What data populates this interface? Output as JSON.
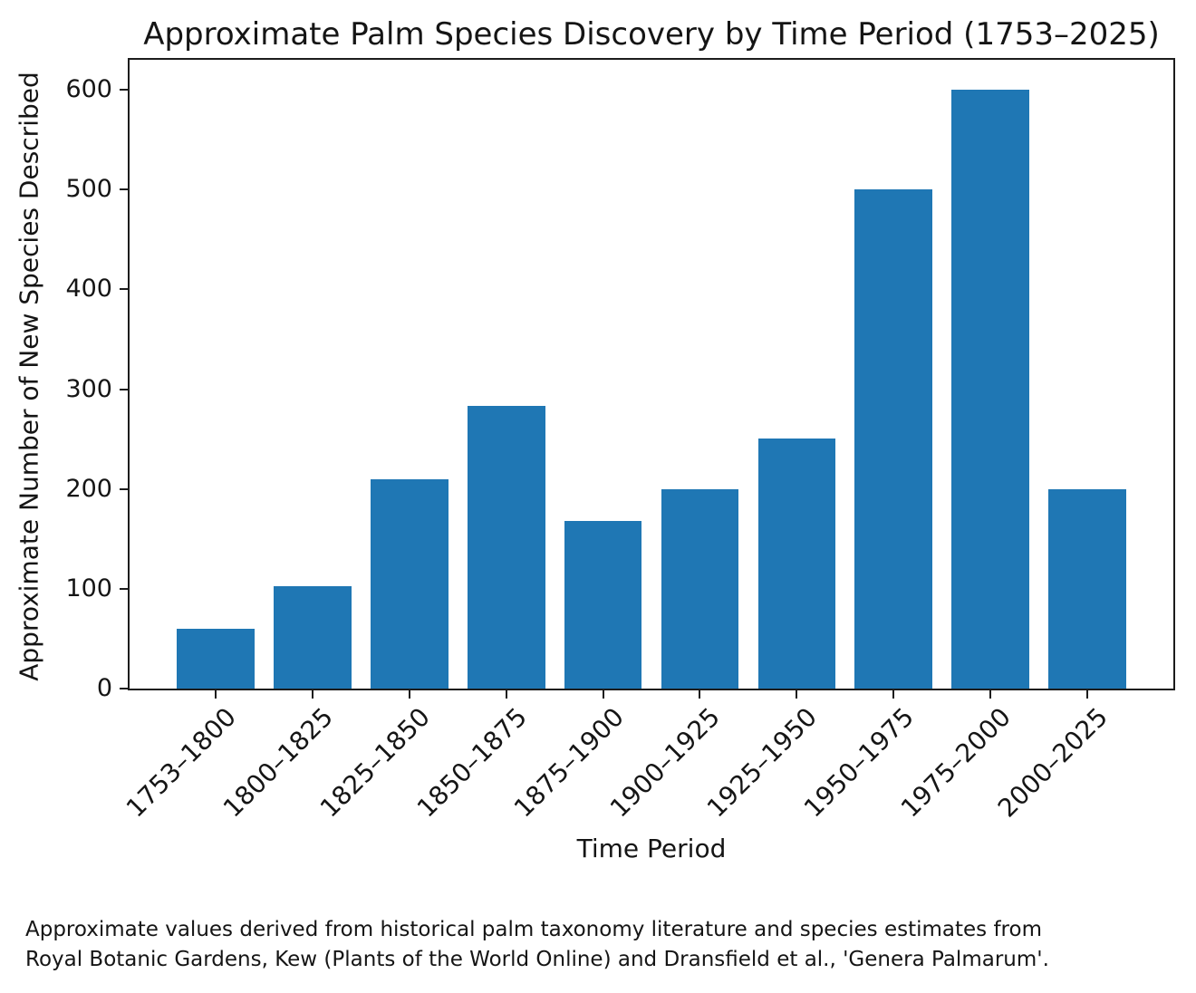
{
  "chart_data": {
    "type": "bar",
    "title": "Approximate Palm Species Discovery by Time Period (1753–2025)",
    "xlabel": "Time Period",
    "ylabel": "Approximate Number of New Species Described",
    "categories": [
      "1753–1800",
      "1800–1825",
      "1825–1850",
      "1850–1875",
      "1875–1900",
      "1900–1925",
      "1925–1950",
      "1950–1975",
      "1975–2000",
      "2000–2025"
    ],
    "values": [
      60,
      103,
      210,
      283,
      168,
      200,
      251,
      500,
      600,
      200
    ],
    "yticks": [
      0,
      100,
      200,
      300,
      400,
      500,
      600
    ],
    "ylim": [
      0,
      630
    ],
    "bar_color": "#1f77b4",
    "grid": false,
    "legend_position": "none"
  },
  "footnote": {
    "lines": [
      "Approximate values derived from historical palm taxonomy literature and species estimates from",
      "Royal Botanic Gardens, Kew (Plants of the World Online) and Dransfield et al., 'Genera Palmarum'."
    ]
  }
}
